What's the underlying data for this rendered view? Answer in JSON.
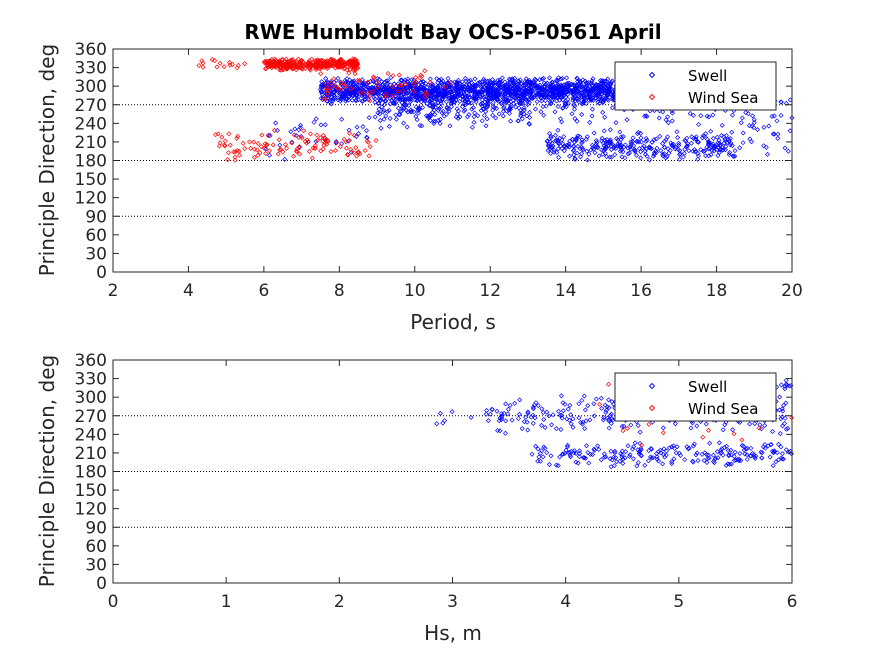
{
  "figure": {
    "title": "RWE Humboldt Bay OCS-P-0561 April"
  },
  "colors": {
    "swell": "#0000ff",
    "wind_sea": "#ff0000",
    "axis": "#262626",
    "reference_lines": "#000000"
  },
  "chart_data": [
    {
      "type": "scatter",
      "title": "RWE Humboldt Bay OCS-P-0561 April",
      "xlabel": "Period, s",
      "ylabel": "Principle Direction, deg",
      "xlim": [
        2,
        20
      ],
      "ylim": [
        0,
        360
      ],
      "xticks": [
        "2",
        "4",
        "6",
        "8",
        "10",
        "12",
        "14",
        "16",
        "18",
        "20"
      ],
      "yticks": [
        "0",
        "30",
        "60",
        "90",
        "120",
        "150",
        "180",
        "210",
        "240",
        "270",
        "300",
        "330",
        "360"
      ],
      "reference_lines_y": [
        90,
        180,
        270
      ],
      "grid": false,
      "legend": {
        "position": "top-right",
        "entries": [
          "Swell",
          "Wind Sea"
        ]
      },
      "marker": "diamond",
      "series": [
        {
          "name": "Swell",
          "clusters": [
            {
              "x": [
                7.5,
                15.5
              ],
              "y": [
                270,
                315
              ],
              "count": 1500
            },
            {
              "x": [
                9.0,
                13.0
              ],
              "y": [
                230,
                300
              ],
              "count": 230
            },
            {
              "x": [
                13.0,
                18.0
              ],
              "y": [
                230,
                310
              ],
              "count": 130
            },
            {
              "x": [
                13.5,
                18.5
              ],
              "y": [
                178,
                230
              ],
              "count": 320
            },
            {
              "x": [
                18.0,
                20.0
              ],
              "y": [
                185,
                300
              ],
              "count": 60
            },
            {
              "x": [
                6.0,
                9.0
              ],
              "y": [
                180,
                275
              ],
              "count": 40
            }
          ]
        },
        {
          "name": "Wind Sea",
          "clusters": [
            {
              "x": [
                6.0,
                8.5
              ],
              "y": [
                325,
                345
              ],
              "count": 350
            },
            {
              "x": [
                4.2,
                5.5
              ],
              "y": [
                325,
                345
              ],
              "count": 15
            },
            {
              "x": [
                4.7,
                9.0
              ],
              "y": [
                180,
                230
              ],
              "count": 110
            },
            {
              "x": [
                7.5,
                11.0
              ],
              "y": [
                270,
                330
              ],
              "count": 60
            }
          ]
        }
      ]
    },
    {
      "type": "scatter",
      "xlabel": "Hs, m",
      "ylabel": "Principle Direction, deg",
      "xlim": [
        0,
        6
      ],
      "ylim": [
        0,
        360
      ],
      "xticks": [
        "0",
        "1",
        "2",
        "3",
        "4",
        "5",
        "6"
      ],
      "yticks": [
        "0",
        "30",
        "60",
        "90",
        "120",
        "150",
        "180",
        "210",
        "240",
        "270",
        "300",
        "330",
        "360"
      ],
      "reference_lines_y": [
        90,
        180,
        270
      ],
      "grid": false,
      "legend": {
        "position": "top-right",
        "entries": [
          "Swell",
          "Wind Sea"
        ]
      },
      "marker": "diamond",
      "series": [
        {
          "name": "Swell",
          "clusters": [
            {
              "x": [
                3.7,
                6.0
              ],
              "y": [
                185,
                230
              ],
              "count": 220
            },
            {
              "x": [
                3.3,
                6.0
              ],
              "y": [
                240,
                305
              ],
              "count": 260
            },
            {
              "x": [
                2.8,
                3.4
              ],
              "y": [
                250,
                285
              ],
              "count": 8
            },
            {
              "x": [
                5.4,
                6.0
              ],
              "y": [
                305,
                335
              ],
              "count": 25
            }
          ]
        },
        {
          "name": "Wind Sea",
          "clusters": [
            {
              "x": [
                4.3,
                6.0
              ],
              "y": [
                180,
                340
              ],
              "count": 18
            }
          ]
        }
      ]
    }
  ]
}
